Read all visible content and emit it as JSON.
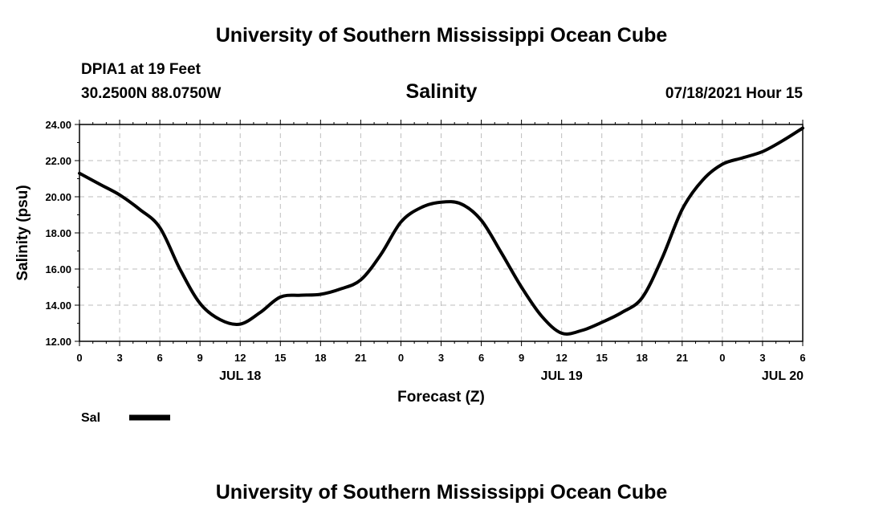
{
  "header": {
    "top_title": "University of Southern Mississippi Ocean Cube",
    "station": "DPIA1 at 19 Feet",
    "coords": "30.2500N  88.0750W",
    "variable": "Salinity",
    "date": "07/18/2021 Hour 15"
  },
  "footer": {
    "title": "University of Southern Mississippi Ocean Cube"
  },
  "chart_data": {
    "type": "line",
    "title": "Salinity",
    "xlabel": "Forecast (Z)",
    "ylabel": "Salinity (psu)",
    "ylim": [
      12,
      24
    ],
    "yticks": [
      "12.00",
      "14.00",
      "16.00",
      "18.00",
      "20.00",
      "22.00",
      "24.00"
    ],
    "xlim": [
      0,
      54
    ],
    "xticks": [
      "0",
      "3",
      "6",
      "9",
      "12",
      "15",
      "18",
      "21",
      "0",
      "3",
      "6",
      "9",
      "12",
      "15",
      "18",
      "21",
      "0",
      "3",
      "6"
    ],
    "day_labels": [
      {
        "hour": 12,
        "label": "JUL 18"
      },
      {
        "hour": 36,
        "label": "JUL 19"
      },
      {
        "hour": 52.5,
        "label": "JUL 20"
      }
    ],
    "grid": true,
    "legend": {
      "placement": "bottom-left",
      "label": "Sal"
    },
    "series": [
      {
        "name": "Sal",
        "color": "#000000",
        "x": [
          0,
          1.5,
          3,
          4.5,
          6,
          7.5,
          9,
          10.5,
          12,
          13.5,
          15,
          16.5,
          18,
          19.5,
          21,
          22.5,
          24,
          25.5,
          27,
          28.5,
          30,
          31.5,
          33,
          34.5,
          36,
          37.5,
          39,
          40.5,
          42,
          43.5,
          45,
          46.5,
          48,
          49.5,
          51,
          52.5,
          54
        ],
        "values": [
          21.3,
          20.7,
          20.1,
          19.3,
          18.3,
          16.0,
          14.1,
          13.2,
          12.95,
          13.6,
          14.45,
          14.55,
          14.6,
          14.9,
          15.4,
          16.8,
          18.6,
          19.4,
          19.7,
          19.6,
          18.7,
          16.9,
          15.0,
          13.4,
          12.45,
          12.6,
          13.05,
          13.6,
          14.4,
          16.6,
          19.3,
          20.9,
          21.8,
          22.15,
          22.5,
          23.1,
          23.8
        ]
      }
    ]
  }
}
